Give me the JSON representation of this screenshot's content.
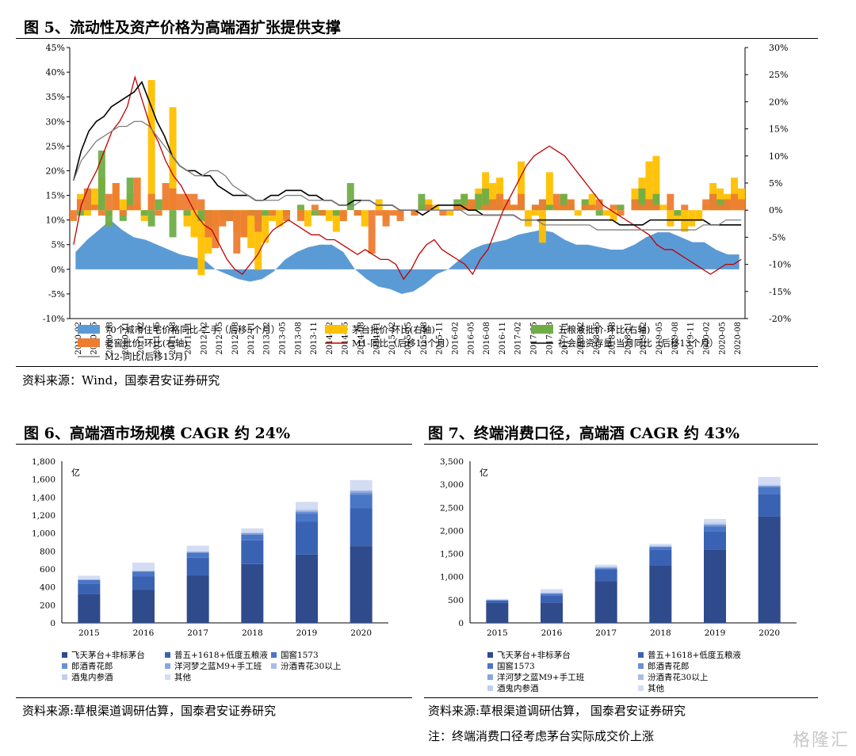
{
  "figure5": {
    "title": "图 5、流动性及资产价格为高端酒扩张提供支撑",
    "source": "资料来源：Wind，国泰君安证券研究"
  },
  "figure6": {
    "title": "图 6、高端酒市场规模 CAGR 约 24%",
    "source": "资料来源:草根渠道调研估算，国泰君安证券研究"
  },
  "figure7": {
    "title": "图 7、终端消费口径，高端酒 CAGR 约 43%",
    "source": "资料来源:草根渠道调研估算，  国泰君安证券研究",
    "note": "注：终端消费口径考虑茅台实际成交价上涨"
  },
  "watermark": "格隆汇",
  "chart_data": [
    {
      "id": "fig5",
      "type": "line",
      "title": "图 5、流动性及资产价格为高端酒扩张提供支撑",
      "x_ticks": [
        "2010-02",
        "2010-05",
        "2010-08",
        "2010-11",
        "2011-02",
        "2011-05",
        "2011-08",
        "2011-11",
        "2012-02",
        "2012-05",
        "2012-08",
        "2012-11",
        "2013-02",
        "2013-05",
        "2013-08",
        "2013-11",
        "2014-02",
        "2014-05",
        "2014-08",
        "2014-11",
        "2015-02",
        "2015-05",
        "2015-08",
        "2015-11",
        "2016-02",
        "2016-05",
        "2016-08",
        "2016-11",
        "2017-02",
        "2017-05",
        "2017-08",
        "2017-11",
        "2018-02",
        "2018-05",
        "2018-08",
        "2018-11",
        "2019-02",
        "2019-05",
        "2019-08",
        "2019-11",
        "2020-02",
        "2020-05",
        "2020-08"
      ],
      "left_axis": {
        "ticks": [
          "45%",
          "40%",
          "35%",
          "30%",
          "25%",
          "20%",
          "15%",
          "10%",
          "5%",
          "0%",
          "-5%",
          "-10%"
        ],
        "ylim": [
          -10,
          45
        ]
      },
      "right_axis": {
        "ticks": [
          "30%",
          "25%",
          "20%",
          "15%",
          "10%",
          "5%",
          "0%",
          "-5%",
          "-10%",
          "-15%",
          "-20%"
        ],
        "ylim": [
          -20,
          30
        ]
      },
      "legend_position": "bottom",
      "series": [
        {
          "name": "70个城市住宅价格同比-二手（后移5个月）",
          "kind": "area",
          "axis": "left",
          "color": "#5b9bd5",
          "values": [
            3.5,
            6,
            8,
            10,
            8,
            6.5,
            6,
            5,
            4,
            3,
            2.5,
            2,
            0,
            -1,
            -2,
            -2.5,
            -2,
            -0.5,
            2,
            3.5,
            4.5,
            5,
            5,
            3.5,
            0,
            -2,
            -3.5,
            -4,
            -5,
            -4.5,
            -3,
            -1,
            0,
            2,
            4,
            5,
            5.5,
            6,
            7,
            7.5,
            8,
            7.5,
            6,
            5,
            5,
            4.5,
            4,
            4,
            5,
            6.5,
            7.5,
            7.5,
            6.5,
            5.5,
            5.5,
            4,
            3,
            3
          ]
        },
        {
          "name": "茅台批价-环比(右轴)",
          "kind": "bar",
          "axis": "right",
          "color": "#ffc000",
          "values": [
            0,
            3,
            -1,
            4,
            6,
            -1,
            5,
            2,
            3,
            1,
            -2,
            24,
            0,
            2,
            19,
            0,
            -3,
            -5,
            -12,
            -8,
            -3,
            -2,
            -1,
            -4,
            -5,
            -7,
            -11,
            -6,
            -2,
            -3,
            -1,
            0,
            -1,
            -3,
            0,
            -1,
            -2,
            -4,
            -2,
            0,
            -1,
            -3,
            0,
            2,
            -2,
            0,
            -1,
            0,
            -1,
            1,
            2,
            1,
            0,
            -1,
            0,
            3,
            2,
            4,
            7,
            5,
            6,
            1,
            1,
            9,
            -3,
            -1,
            -6,
            7,
            1,
            3,
            2,
            -1,
            2,
            3,
            0,
            -1,
            -2,
            1,
            0,
            4,
            6,
            9,
            10,
            1,
            -3,
            -2,
            -4,
            -3,
            -2,
            1,
            5,
            4,
            3,
            6,
            4
          ]
        },
        {
          "name": "五粮液批价-环比(右轴)",
          "kind": "bar",
          "axis": "right",
          "color": "#70ad47",
          "values": [
            0,
            -1,
            4,
            0,
            11,
            -3,
            0,
            -2,
            6,
            0,
            -1,
            -3,
            2,
            0,
            -5,
            0,
            -1,
            0,
            -2,
            -3,
            0,
            -1,
            -2,
            0,
            0,
            -1,
            -2,
            -1,
            0,
            0,
            -1,
            0,
            1,
            0,
            -1,
            -1,
            0,
            -1,
            0,
            5,
            -1,
            0,
            0,
            0,
            0,
            0,
            0,
            0,
            0,
            3,
            1,
            0,
            0,
            0,
            2,
            3,
            1,
            3,
            4,
            2,
            1,
            0,
            0,
            2,
            0,
            1,
            2,
            1,
            0,
            3,
            1,
            0,
            2,
            0,
            -1,
            0,
            0,
            1,
            0,
            2,
            4,
            2,
            3,
            0,
            0,
            -1,
            0,
            0,
            0,
            0,
            3,
            2,
            2,
            0,
            0
          ]
        },
        {
          "name": "老窖批价-环比(右轴)",
          "kind": "bar",
          "axis": "right",
          "color": "#ed7d31",
          "values": [
            -2,
            2,
            4,
            1,
            -1,
            3,
            5,
            -1,
            1,
            6,
            0,
            3,
            -1,
            5,
            4,
            3,
            3,
            3,
            2,
            -5,
            -7,
            -3,
            -2,
            -8,
            -5,
            -1,
            -4,
            0,
            -1,
            0,
            -2,
            0,
            -2,
            0,
            1,
            -1,
            0,
            0,
            -2,
            0,
            -1,
            0,
            -8,
            -1,
            -3,
            -1,
            -2,
            0,
            -1,
            0,
            1,
            0,
            -1,
            0,
            1,
            1,
            2,
            0,
            1,
            2,
            3,
            2,
            1,
            3,
            0,
            1,
            2,
            0,
            3,
            1,
            2,
            0,
            1,
            1,
            2,
            0,
            1,
            -1,
            0,
            2,
            1,
            2,
            1,
            0,
            3,
            0,
            1,
            0,
            0,
            2,
            3,
            1,
            2,
            3,
            2
          ]
        },
        {
          "name": "M1-同比（后移13个月）",
          "kind": "line",
          "axis": "left",
          "color": "#c00000",
          "values": [
            5,
            13,
            17,
            20,
            24,
            28,
            30,
            33,
            39,
            34,
            29,
            26,
            22,
            19,
            17,
            14,
            11,
            9,
            8,
            5,
            2,
            0,
            -1,
            1,
            3,
            6,
            8,
            9,
            10,
            9,
            8,
            7,
            7,
            6,
            6,
            5,
            4,
            3,
            4,
            3,
            2,
            2,
            1,
            -2,
            0,
            3,
            5,
            6,
            4,
            3,
            2,
            1,
            -1,
            2,
            4,
            8,
            12,
            15,
            18,
            21,
            23,
            24,
            25,
            24,
            23,
            21,
            19,
            17,
            15,
            13,
            12,
            11,
            10,
            9,
            8,
            7,
            5,
            4,
            4,
            3,
            2,
            1,
            0,
            -1,
            0,
            1,
            1,
            2
          ]
        },
        {
          "name": "社会融资存量-当月同比（后移13个月）",
          "kind": "line",
          "axis": "left",
          "color": "#000000",
          "values": [
            18,
            24,
            28,
            30,
            31,
            33,
            34,
            35,
            36,
            38,
            34,
            30,
            27,
            23,
            21,
            20,
            20,
            19,
            19,
            17,
            16,
            15,
            15,
            15,
            14,
            14,
            15,
            15,
            16,
            16,
            16,
            15,
            15,
            14,
            14,
            13,
            13,
            14,
            14,
            14,
            13,
            13,
            13,
            12,
            12,
            12,
            11,
            12,
            13,
            13,
            13,
            13,
            12,
            12,
            11,
            11,
            11,
            11,
            11,
            10,
            10,
            10,
            10,
            10,
            10,
            10,
            10,
            10,
            10,
            10,
            10,
            10,
            9,
            9,
            9,
            9,
            10,
            10,
            10,
            10,
            10,
            10,
            10,
            10,
            9,
            9,
            9,
            9,
            9
          ]
        },
        {
          "name": "M2-同比(后移13月)",
          "kind": "line",
          "axis": "left",
          "color": "#7f7f7f",
          "values": [
            18,
            22,
            24,
            26,
            27,
            28,
            29,
            29,
            30,
            30,
            29,
            27,
            25,
            23,
            21,
            20,
            19,
            19,
            20,
            20,
            19,
            17,
            16,
            15,
            14,
            14,
            14,
            14,
            15,
            15,
            15,
            14,
            14,
            14,
            14,
            13,
            13,
            13,
            14,
            14,
            13,
            13,
            13,
            12,
            12,
            12,
            12,
            12,
            12,
            12,
            12,
            12,
            11,
            11,
            11,
            11,
            11,
            11,
            11,
            10,
            10,
            10,
            9,
            9,
            9,
            9,
            9,
            9,
            9,
            8,
            8,
            8,
            8,
            8,
            8,
            8,
            8,
            8,
            8,
            8,
            8,
            8,
            8,
            9,
            9,
            9,
            10,
            10,
            10
          ]
        }
      ]
    },
    {
      "id": "fig6",
      "type": "bar",
      "title": "图 6、高端酒市场规模 CAGR 约 24%",
      "unit": "亿",
      "categories": [
        "2015",
        "2016",
        "2017",
        "2018",
        "2019",
        "2020"
      ],
      "y_ticks": [
        "1,800",
        "1,600",
        "1,400",
        "1,200",
        "1,000",
        "800",
        "600",
        "400",
        "200",
        "0"
      ],
      "ylim": [
        0,
        1800
      ],
      "stacked": true,
      "series": [
        {
          "name": "飞天茅台+非标茅台",
          "color": "#2f4b8c",
          "values": [
            318,
            370,
            525,
            655,
            760,
            855
          ]
        },
        {
          "name": "普五+1618+低度五粮液",
          "color": "#3a62b3",
          "values": [
            120,
            150,
            200,
            265,
            365,
            420
          ]
        },
        {
          "name": "国窖1573",
          "color": "#4a76c6",
          "values": [
            42,
            50,
            52,
            62,
            92,
            150
          ]
        },
        {
          "name": "郎酒青花郎",
          "color": "#6d8fd4",
          "values": [
            0,
            5,
            8,
            10,
            20,
            25
          ]
        },
        {
          "name": "洋河梦之蓝M9+手工班",
          "color": "#8aa6dd",
          "values": [
            0,
            5,
            5,
            8,
            10,
            15
          ]
        },
        {
          "name": "汾酒青花30以上",
          "color": "#a9bde6",
          "values": [
            0,
            0,
            5,
            7,
            10,
            10
          ]
        },
        {
          "name": "酒鬼内参酒",
          "color": "#c0cfee",
          "values": [
            0,
            0,
            5,
            5,
            10,
            10
          ]
        },
        {
          "name": "其他",
          "color": "#d3dcf2",
          "values": [
            45,
            90,
            60,
            40,
            80,
            105
          ]
        }
      ]
    },
    {
      "id": "fig7",
      "type": "bar",
      "title": "图 7、终端消费口径，高端酒 CAGR 约 43%",
      "unit": "亿",
      "categories": [
        "2015",
        "2016",
        "2017",
        "2018",
        "2019",
        "2020"
      ],
      "y_ticks": [
        "3,500",
        "3,000",
        "2,500",
        "2,000",
        "1,500",
        "1,000",
        "500",
        "0"
      ],
      "ylim": [
        0,
        3500
      ],
      "stacked": true,
      "series": [
        {
          "name": "飞天茅台+非标茅台",
          "color": "#2f4b8c",
          "values": [
            430,
            440,
            900,
            1250,
            1590,
            2300
          ]
        },
        {
          "name": "普五+1618+低度五粮液",
          "color": "#3a62b3",
          "values": [
            55,
            150,
            250,
            330,
            390,
            490
          ]
        },
        {
          "name": "国窖1573",
          "color": "#4a76c6",
          "values": [
            10,
            40,
            30,
            60,
            110,
            150
          ]
        },
        {
          "name": "郎酒青花郎",
          "color": "#6d8fd4",
          "values": [
            0,
            10,
            10,
            10,
            20,
            20
          ]
        },
        {
          "name": "洋河梦之蓝M9+手工班",
          "color": "#8aa6dd",
          "values": [
            0,
            10,
            10,
            10,
            20,
            10
          ]
        },
        {
          "name": "汾酒青花30以上",
          "color": "#a9bde6",
          "values": [
            0,
            0,
            10,
            10,
            20,
            10
          ]
        },
        {
          "name": "酒鬼内参酒",
          "color": "#c0cfee",
          "values": [
            0,
            0,
            10,
            10,
            20,
            20
          ]
        },
        {
          "name": "其他",
          "color": "#d3dcf2",
          "values": [
            25,
            80,
            40,
            30,
            80,
            160
          ]
        }
      ]
    }
  ]
}
